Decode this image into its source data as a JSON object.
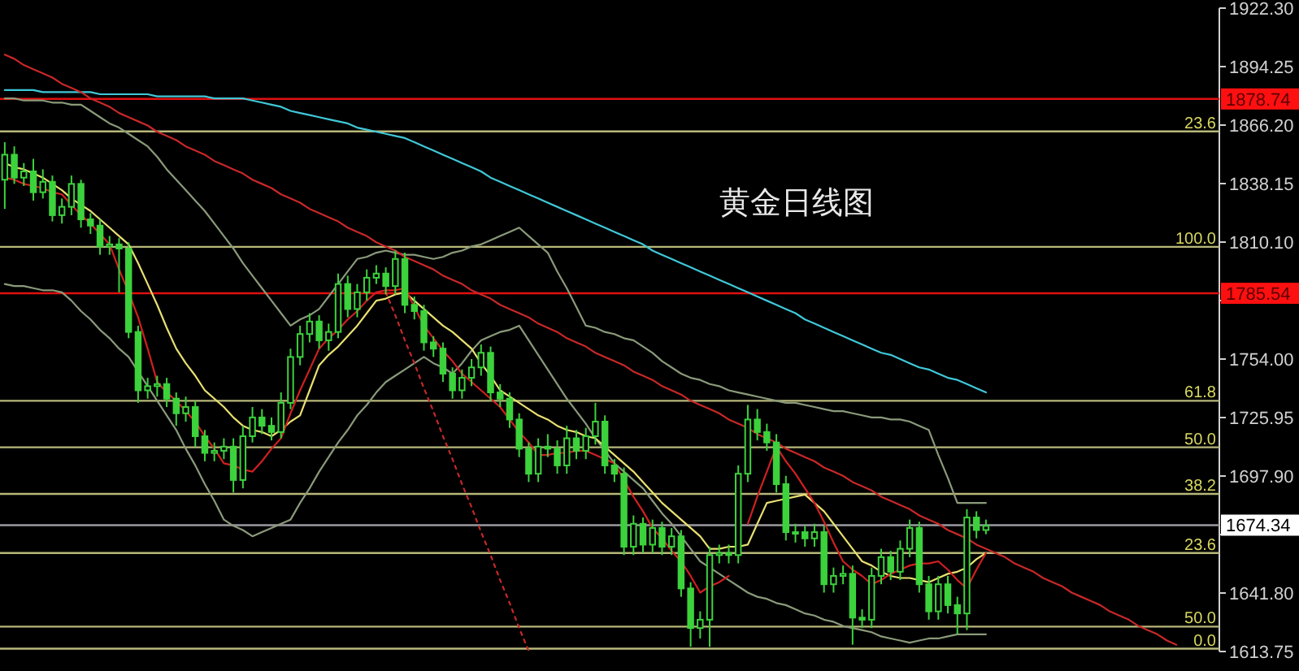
{
  "chart_data": {
    "type": "candlestick",
    "title": "黄金日线图",
    "color": "#3cd23c",
    "categories": [
      null,
      null,
      null,
      null,
      null,
      null,
      null,
      null,
      null,
      null,
      null,
      null,
      null,
      null,
      null,
      null,
      null,
      null,
      null,
      null,
      null,
      null,
      null,
      null,
      null,
      null,
      null,
      null,
      null,
      null,
      null,
      null,
      null,
      null,
      null,
      null,
      null,
      null,
      null,
      null,
      null,
      null,
      null,
      null,
      null,
      null,
      null,
      null,
      null,
      null,
      null,
      null,
      null,
      null,
      null,
      null,
      null,
      null,
      null,
      null,
      null,
      null,
      null,
      null,
      null,
      null,
      null,
      null,
      null,
      null,
      null,
      null,
      null,
      null,
      null,
      null,
      null,
      null,
      null,
      null,
      null,
      null,
      null,
      null,
      null,
      null,
      null,
      null,
      null,
      null,
      null,
      null,
      null,
      null,
      null,
      null,
      null,
      null,
      null,
      null,
      null,
      null,
      null,
      null,
      null,
      null,
      null,
      null,
      null,
      null,
      null,
      null,
      null,
      null,
      null,
      null,
      null,
      null,
      null,
      null,
      null,
      null,
      null,
      null,
      null,
      null,
      null,
      null
    ],
    "ohlc": [
      [
        1840,
        1858,
        1826,
        1852
      ],
      [
        1852,
        1856,
        1838,
        1841
      ],
      [
        1841,
        1848,
        1837,
        1844
      ],
      [
        1844,
        1850,
        1830,
        1834
      ],
      [
        1834,
        1845,
        1831,
        1839
      ],
      [
        1839,
        1842,
        1820,
        1823
      ],
      [
        1823,
        1831,
        1819,
        1827
      ],
      [
        1827,
        1842,
        1823,
        1838
      ],
      [
        1838,
        1840,
        1817,
        1821
      ],
      [
        1821,
        1824,
        1814,
        1818
      ],
      [
        1818,
        1821,
        1804,
        1808
      ],
      [
        1808,
        1813,
        1804,
        1809
      ],
      [
        1809,
        1812,
        1786,
        1807
      ],
      [
        1807,
        1810,
        1764,
        1767
      ],
      [
        1767,
        1770,
        1733,
        1739
      ],
      [
        1739,
        1745,
        1735,
        1741
      ],
      [
        1741,
        1746,
        1736,
        1742
      ],
      [
        1742,
        1745,
        1731,
        1735
      ],
      [
        1735,
        1738,
        1722,
        1728
      ],
      [
        1728,
        1736,
        1724,
        1731
      ],
      [
        1731,
        1734,
        1712,
        1717
      ],
      [
        1717,
        1720,
        1705,
        1709
      ],
      [
        1709,
        1714,
        1705,
        1710
      ],
      [
        1710,
        1716,
        1706,
        1712
      ],
      [
        1712,
        1716,
        1690,
        1696
      ],
      [
        1696,
        1722,
        1692,
        1717
      ],
      [
        1717,
        1731,
        1714,
        1726
      ],
      [
        1726,
        1730,
        1718,
        1722
      ],
      [
        1722,
        1726,
        1715,
        1719
      ],
      [
        1719,
        1738,
        1716,
        1733
      ],
      [
        1733,
        1759,
        1730,
        1755
      ],
      [
        1755,
        1770,
        1751,
        1766
      ],
      [
        1766,
        1776,
        1762,
        1772
      ],
      [
        1772,
        1775,
        1759,
        1763
      ],
      [
        1763,
        1771,
        1758,
        1767
      ],
      [
        1767,
        1795,
        1764,
        1790
      ],
      [
        1790,
        1794,
        1774,
        1778
      ],
      [
        1778,
        1790,
        1774,
        1786
      ],
      [
        1786,
        1797,
        1782,
        1793
      ],
      [
        1793,
        1799,
        1790,
        1795
      ],
      [
        1795,
        1798,
        1785,
        1789
      ],
      [
        1789,
        1806,
        1785,
        1802
      ],
      [
        1802,
        1805,
        1776,
        1780
      ],
      [
        1780,
        1784,
        1773,
        1777
      ],
      [
        1777,
        1780,
        1758,
        1762
      ],
      [
        1762,
        1765,
        1755,
        1759
      ],
      [
        1759,
        1762,
        1743,
        1747
      ],
      [
        1747,
        1750,
        1735,
        1739
      ],
      [
        1739,
        1749,
        1735,
        1745
      ],
      [
        1745,
        1754,
        1741,
        1750
      ],
      [
        1750,
        1761,
        1746,
        1757
      ],
      [
        1757,
        1760,
        1734,
        1738
      ],
      [
        1738,
        1742,
        1731,
        1735
      ],
      [
        1735,
        1738,
        1721,
        1725
      ],
      [
        1725,
        1728,
        1707,
        1711
      ],
      [
        1711,
        1714,
        1695,
        1699
      ],
      [
        1699,
        1716,
        1695,
        1712
      ],
      [
        1712,
        1718,
        1707,
        1711
      ],
      [
        1711,
        1715,
        1699,
        1703
      ],
      [
        1703,
        1722,
        1699,
        1716
      ],
      [
        1716,
        1720,
        1706,
        1710
      ],
      [
        1710,
        1721,
        1706,
        1717
      ],
      [
        1717,
        1733,
        1713,
        1724
      ],
      [
        1724,
        1727,
        1699,
        1703
      ],
      [
        1703,
        1706,
        1695,
        1699
      ],
      [
        1699,
        1702,
        1660,
        1664
      ],
      [
        1664,
        1679,
        1660,
        1675
      ],
      [
        1675,
        1678,
        1661,
        1665
      ],
      [
        1665,
        1677,
        1661,
        1673
      ],
      [
        1673,
        1676,
        1660,
        1664
      ],
      [
        1664,
        1673,
        1660,
        1669
      ],
      [
        1669,
        1672,
        1640,
        1644
      ],
      [
        1644,
        1647,
        1616,
        1625
      ],
      [
        1625,
        1633,
        1620,
        1629
      ],
      [
        1629,
        1664,
        1616,
        1660
      ],
      [
        1660,
        1665,
        1656,
        1661
      ],
      [
        1661,
        1665,
        1656,
        1660
      ],
      [
        1660,
        1703,
        1656,
        1699
      ],
      [
        1699,
        1732,
        1695,
        1725
      ],
      [
        1725,
        1730,
        1715,
        1719
      ],
      [
        1719,
        1723,
        1710,
        1714
      ],
      [
        1714,
        1718,
        1690,
        1694
      ],
      [
        1694,
        1698,
        1667,
        1671
      ],
      [
        1671,
        1675,
        1666,
        1671
      ],
      [
        1671,
        1674,
        1664,
        1668
      ],
      [
        1668,
        1675,
        1664,
        1671
      ],
      [
        1671,
        1674,
        1642,
        1646
      ],
      [
        1646,
        1654,
        1642,
        1650
      ],
      [
        1650,
        1655,
        1646,
        1651
      ],
      [
        1651,
        1655,
        1617,
        1630
      ],
      [
        1630,
        1634,
        1625,
        1629
      ],
      [
        1629,
        1654,
        1625,
        1650
      ],
      [
        1650,
        1663,
        1646,
        1659
      ],
      [
        1659,
        1662,
        1648,
        1652
      ],
      [
        1652,
        1667,
        1648,
        1663
      ],
      [
        1663,
        1677,
        1659,
        1673
      ],
      [
        1673,
        1676,
        1642,
        1646
      ],
      [
        1646,
        1650,
        1629,
        1633
      ],
      [
        1633,
        1650,
        1629,
        1646
      ],
      [
        1646,
        1650,
        1632,
        1636
      ],
      [
        1636,
        1640,
        1622,
        1632
      ],
      [
        1632,
        1682,
        1624,
        1678
      ],
      [
        1678,
        1681,
        1668,
        1672
      ],
      [
        1672,
        1677,
        1670,
        1674
      ],
      null,
      null,
      null,
      null,
      null,
      null,
      null,
      null,
      null,
      null,
      null,
      null,
      null,
      null,
      null,
      null,
      null,
      null,
      null,
      null,
      null,
      null,
      null,
      null
    ],
    "series": [
      {
        "type": "line",
        "color": "#40c8d8",
        "values": [
          1883,
          1883,
          1883,
          1883,
          1882,
          1882,
          1882,
          1882,
          1882,
          1882,
          1881,
          1881,
          1881,
          1881,
          1881,
          1881,
          1880,
          1880,
          1880,
          1880,
          1880,
          1880,
          1879,
          1879,
          1879,
          1879,
          1878,
          1877,
          1876,
          1875,
          1873,
          1872,
          1871,
          1870,
          1869,
          1868,
          1867,
          1865,
          1864,
          1863,
          1862,
          1861,
          1860,
          1858,
          1856,
          1854,
          1852,
          1850,
          1848,
          1846,
          1844,
          1841,
          1839,
          1837,
          1835,
          1833,
          1831,
          1829,
          1827,
          1825,
          1823,
          1821,
          1819,
          1817,
          1815,
          1813,
          1811,
          1809,
          1806,
          1804,
          1802,
          1800,
          1798,
          1796,
          1794,
          1792,
          1790,
          1788,
          1786,
          1784,
          1782,
          1780,
          1778,
          1776,
          1773,
          1771,
          1769,
          1767,
          1765,
          1763,
          1761,
          1759,
          1757,
          1756,
          1754,
          1752,
          1750,
          1749,
          1747,
          1745,
          1744,
          1742,
          1740,
          1738,
          null,
          null,
          null,
          null,
          null,
          null,
          null,
          null,
          null,
          null,
          null,
          null,
          null,
          null,
          null,
          null,
          null,
          null,
          null,
          null,
          null,
          null,
          null,
          null
        ]
      },
      {
        "type": "line",
        "color": "#8a9a7a",
        "values": [
          1879,
          1879,
          1878,
          1878,
          1878,
          1877,
          1877,
          1876,
          1876,
          1873,
          1870,
          1867,
          1865,
          1862,
          1859,
          1856,
          1851,
          1845,
          1840,
          1835,
          1830,
          1825,
          1819,
          1813,
          1807,
          1800,
          1794,
          1788,
          1782,
          1776,
          1770,
          1773,
          1775,
          1778,
          1784,
          1790,
          1796,
          1802,
          1803,
          1805,
          1806,
          1805,
          1804,
          1804,
          1803,
          1802,
          1803,
          1805,
          1806,
          1808,
          1809,
          1811,
          1813,
          1815,
          1817,
          1813,
          1809,
          1805,
          1796,
          1788,
          1779,
          1770,
          1769,
          1767,
          1766,
          1764,
          1763,
          1760,
          1757,
          1753,
          1750,
          1747,
          1745,
          1744,
          1742,
          1741,
          1739,
          1738,
          1737,
          1736,
          1735,
          1734,
          1733,
          1733,
          1732,
          1731,
          1730,
          1729,
          1729,
          1728,
          1727,
          1726,
          1726,
          1725,
          1725,
          1724,
          1722,
          1720,
          1708,
          1697,
          1685,
          1685,
          1685,
          1685,
          null,
          null,
          null,
          null,
          null,
          null,
          null,
          null,
          null,
          null,
          null,
          null,
          null,
          null,
          null,
          null,
          null,
          null,
          null,
          null,
          null,
          null,
          null,
          null
        ]
      },
      {
        "type": "line",
        "color": "#8a9a7a",
        "values": [
          1790,
          1789,
          1789,
          1788,
          1787,
          1787,
          1786,
          1782,
          1777,
          1773,
          1768,
          1764,
          1759,
          1755,
          1748,
          1741,
          1734,
          1727,
          1720,
          1711,
          1703,
          1694,
          1686,
          1677,
          1674,
          1672,
          1669,
          1671,
          1673,
          1675,
          1677,
          1685,
          1692,
          1700,
          1707,
          1714,
          1720,
          1727,
          1732,
          1738,
          1743,
          1746,
          1749,
          1752,
          1755,
          1752,
          1750,
          1747,
          1752,
          1758,
          1763,
          1765,
          1767,
          1768,
          1770,
          1763,
          1756,
          1749,
          1742,
          1735,
          1729,
          1723,
          1716,
          1710,
          1704,
          1700,
          1696,
          1692,
          1686,
          1680,
          1675,
          1669,
          1663,
          1657,
          1654,
          1651,
          1648,
          1645,
          1642,
          1640,
          1639,
          1637,
          1636,
          1634,
          1632,
          1631,
          1629,
          1628,
          1626,
          1625,
          1624,
          1623,
          1621,
          1620,
          1619,
          1618,
          1619,
          1620,
          1620,
          1621,
          1622,
          1622,
          1622,
          1622,
          null,
          null,
          null,
          null,
          null,
          null,
          null,
          null,
          null,
          null,
          null,
          null,
          null,
          null,
          null,
          null,
          null,
          null,
          null,
          null,
          null,
          null,
          null,
          null
        ]
      },
      {
        "type": "line",
        "color": "#e8e070",
        "values": [
          1848,
          1846,
          1845,
          1843,
          1841,
          1838,
          1835,
          1831,
          1828,
          1825,
          1821,
          1817,
          1813,
          1809,
          1800,
          1790,
          1780,
          1769,
          1759,
          1752,
          1746,
          1739,
          1735,
          1731,
          1726,
          1722,
          1720,
          1719,
          1717,
          1720,
          1724,
          1727,
          1739,
          1751,
          1756,
          1760,
          1765,
          1770,
          1776,
          1782,
          1783,
          1785,
          1786,
          1782,
          1778,
          1774,
          1770,
          1767,
          1763,
          1759,
          1752,
          1746,
          1739,
          1736,
          1733,
          1730,
          1727,
          1725,
          1722,
          1720,
          1719,
          1717,
          1716,
          1712,
          1708,
          1704,
          1700,
          1695,
          1690,
          1685,
          1681,
          1677,
          1673,
          1669,
          1663,
          1663,
          1664,
          1664,
          1665,
          1675,
          1685,
          1686,
          1687,
          1688,
          1689,
          1685,
          1681,
          1675,
          1669,
          1663,
          1657,
          1655,
          1652,
          1650,
          1649,
          1649,
          1648,
          1647,
          1649,
          1651,
          1652,
          1654,
          1658,
          1661,
          null,
          null,
          null,
          null,
          null,
          null,
          null,
          null,
          null,
          null,
          null,
          null,
          null,
          null,
          null,
          null,
          null,
          null,
          null,
          null,
          null,
          null,
          null,
          null
        ]
      },
      {
        "type": "line",
        "color": "#d02020",
        "values": [
          1841,
          1840,
          1838,
          1837,
          1836,
          1834,
          1833,
          1828,
          1823,
          1819,
          1814,
          1809,
          1797,
          1786,
          1774,
          1759,
          1743,
          1738,
          1734,
          1729,
          1724,
          1717,
          1711,
          1704,
          1703,
          1701,
          1700,
          1705,
          1711,
          1716,
          1728,
          1739,
          1749,
          1759,
          1764,
          1768,
          1773,
          1777,
          1782,
          1786,
          1787,
          1787,
          1788,
          1779,
          1770,
          1764,
          1758,
          1753,
          1747,
          1743,
          1739,
          1735,
          1731,
          1725,
          1719,
          1714,
          1708,
          1708,
          1709,
          1709,
          1710,
          1710,
          1708,
          1706,
          1704,
          1696,
          1688,
          1681,
          1673,
          1668,
          1662,
          1657,
          1650,
          1642,
          1645,
          1647,
          1650,
          null,
          1675,
          1688,
          1700,
          1712,
          1705,
          1699,
          1692,
          1685,
          1676,
          1666,
          1657,
          1653,
          1650,
          1646,
          1648,
          1651,
          1653,
          1655,
          1656,
          1656,
          1657,
          1653,
          1648,
          1644,
          1653,
          1661,
          null,
          null,
          null,
          null,
          null,
          null,
          null,
          null,
          null,
          null,
          null,
          null,
          null,
          null,
          null,
          null,
          null,
          null,
          null,
          null,
          null,
          null,
          null,
          null
        ]
      },
      {
        "type": "line",
        "color": "#c82828",
        "values": [
          1900,
          1898,
          1895,
          1893,
          1891,
          1889,
          1886,
          1884,
          1882,
          1879,
          1877,
          1875,
          1872,
          1870,
          1868,
          1866,
          1863,
          1861,
          1859,
          1856,
          1854,
          1852,
          1849,
          1847,
          1845,
          1843,
          1840,
          1838,
          1836,
          1833,
          1831,
          1829,
          1826,
          1824,
          1822,
          1820,
          1817,
          1815,
          1813,
          1810,
          1808,
          1806,
          1803,
          1801,
          1799,
          1797,
          1794,
          1792,
          1790,
          1787,
          1785,
          1783,
          1780,
          1778,
          1776,
          1774,
          1771,
          1769,
          1767,
          1764,
          1762,
          1760,
          1757,
          1755,
          1753,
          1751,
          1748,
          1746,
          1744,
          1741,
          1739,
          1737,
          1734,
          1732,
          1730,
          1728,
          1725,
          1723,
          1721,
          1718,
          1716,
          1714,
          1711,
          1709,
          1707,
          1705,
          1702,
          1700,
          1698,
          1695,
          1693,
          1691,
          1688,
          1686,
          1684,
          1682,
          1679,
          1677,
          1675,
          1672,
          1670,
          1668,
          1665,
          1663,
          1661,
          1659,
          1656,
          1654,
          1652,
          1649,
          1647,
          1645,
          1642,
          1640,
          1638,
          1636,
          1633,
          1631,
          1629,
          1626,
          1624,
          1622,
          1619,
          1617,
          null,
          null,
          null,
          null
        ]
      },
      {
        "type": "line",
        "color": "#c82828",
        "line_style": "dotted",
        "values": [
          null,
          null,
          null,
          null,
          null,
          null,
          null,
          null,
          null,
          null,
          null,
          null,
          null,
          null,
          null,
          null,
          null,
          null,
          null,
          null,
          null,
          null,
          null,
          null,
          null,
          null,
          null,
          null,
          null,
          null,
          null,
          null,
          null,
          null,
          null,
          null,
          null,
          null,
          null,
          null,
          1786,
          1775,
          1763,
          1752,
          1740,
          1729,
          1717,
          1706,
          1694,
          1683,
          1671,
          1660,
          1648,
          1637,
          1625,
          1614,
          null,
          null,
          null,
          null,
          null,
          null,
          null,
          null,
          null,
          null,
          null,
          null,
          null,
          null,
          null,
          null,
          null,
          null,
          null,
          null,
          null,
          null,
          null,
          null,
          null,
          null,
          null,
          null,
          null,
          null,
          null,
          null,
          null,
          null,
          null,
          null,
          null,
          null,
          null,
          null,
          null,
          null,
          null,
          null,
          null,
          null,
          null,
          null,
          null,
          null,
          null,
          null,
          null,
          null,
          null,
          null,
          null,
          null,
          null,
          null,
          null,
          null,
          null,
          null,
          null,
          null,
          null,
          null,
          null,
          null,
          null,
          null
        ]
      }
    ],
    "ylim": [
      1613.75,
      1922.3
    ],
    "yticks": [
      {
        "value": 1922.3,
        "label": "1922.30"
      },
      {
        "value": 1894.25,
        "label": "1894.25"
      },
      {
        "value": 1866.2,
        "label": "1866.20"
      },
      {
        "value": 1838.15,
        "label": "1838.15"
      },
      {
        "value": 1810.1,
        "label": "1810.10"
      },
      {
        "value": 1782.05,
        "label": null
      },
      {
        "value": 1754.0,
        "label": "1754.00"
      },
      {
        "value": 1725.95,
        "label": "1725.95"
      },
      {
        "value": 1697.9,
        "label": "1697.90"
      },
      {
        "value": 1669.85,
        "label": null
      },
      {
        "value": 1641.8,
        "label": "1641.80"
      },
      {
        "value": 1613.75,
        "label": "1613.75"
      }
    ],
    "ref_lines": [
      {
        "axis": "y",
        "value": 1878.74,
        "label": "1878.74",
        "color": "#e01010"
      },
      {
        "axis": "y",
        "value": 1785.54,
        "label": "1785.54",
        "color": "#e01010"
      },
      {
        "axis": "y",
        "value": 1674.34,
        "label": "1674.34",
        "color": "#9a9aa0"
      },
      {
        "axis": "y",
        "value": 1863.2,
        "color": "#b8b87a"
      },
      {
        "axis": "y",
        "value": 1807.8,
        "color": "#b8b87a"
      },
      {
        "axis": "y",
        "value": 1734.0,
        "color": "#b8b87a"
      },
      {
        "axis": "y",
        "value": 1711.7,
        "color": "#b8b87a"
      },
      {
        "axis": "y",
        "value": 1689.3,
        "color": "#b8b87a"
      },
      {
        "axis": "y",
        "value": 1661.0,
        "color": "#b8b87a"
      },
      {
        "axis": "y",
        "value": 1625.7,
        "color": "#b8b87a"
      },
      {
        "axis": "y",
        "value": 1615.1,
        "color": "#b8b87a"
      }
    ],
    "annotations": [
      {
        "text": "23.6",
        "y": 1863.2
      },
      {
        "text": "100.0",
        "y": 1807.8
      },
      {
        "text": "61.8",
        "y": 1734.0
      },
      {
        "text": "50.0",
        "y": 1711.7
      },
      {
        "text": "38.2",
        "y": 1689.3
      },
      {
        "text": "23.6",
        "y": 1661.0
      },
      {
        "text": "50.0",
        "y": 1625.7
      },
      {
        "text": "0.0",
        "y": 1615.1
      }
    ]
  }
}
